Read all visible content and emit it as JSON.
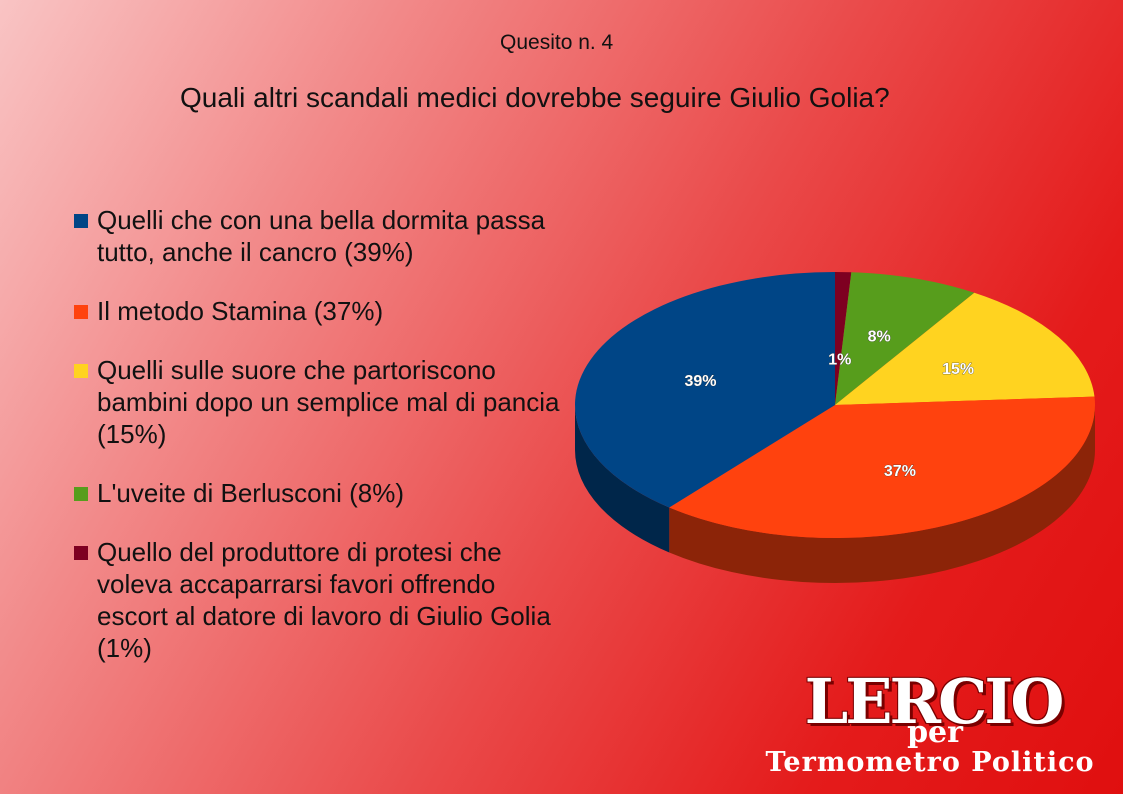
{
  "header": {
    "question_number": "Quesito n. 4",
    "question": "Quali altri scandali medici dovrebbe seguire Giulio Golia?"
  },
  "legend": [
    {
      "label": "Quelli che con una bella dormita passa tutto, anche il cancro (39%)",
      "color": "#004586"
    },
    {
      "label": "Il metodo Stamina (37%)",
      "color": "#ff420e"
    },
    {
      "label": "Quelli sulle suore che partoriscono bambini dopo un semplice mal di pancia (15%)",
      "color": "#ffd320"
    },
    {
      "label": "L'uveite di Berlusconi (8%)",
      "color": "#579d1c"
    },
    {
      "label": "Quello del produttore di protesi che voleva accaparrarsi favori offrendo escort al datore di lavoro di Giulio Golia (1%)",
      "color": "#7e0021"
    }
  ],
  "chart_data": {
    "type": "pie",
    "title": "Quali altri scandali medici dovrebbe seguire Giulio Golia?",
    "categories": [
      "Quello del produttore di protesi che voleva accaparrarsi favori offrendo escort al datore di lavoro di Giulio Golia",
      "L'uveite di Berlusconi",
      "Quelli sulle suore che partoriscono bambini dopo un semplice mal di pancia",
      "Il metodo Stamina",
      "Quelli che con una bella dormita passa tutto, anche il cancro"
    ],
    "values": [
      1,
      8,
      15,
      37,
      39
    ],
    "labels": [
      "1%",
      "8%",
      "15%",
      "37%",
      "39%"
    ],
    "colors": [
      "#7e0021",
      "#579d1c",
      "#ffd320",
      "#ff420e",
      "#004586"
    ],
    "legend_position": "left",
    "style": "3d"
  },
  "logo": {
    "main": "LERCIO",
    "per": "per",
    "sub": "Termometro Politico"
  }
}
